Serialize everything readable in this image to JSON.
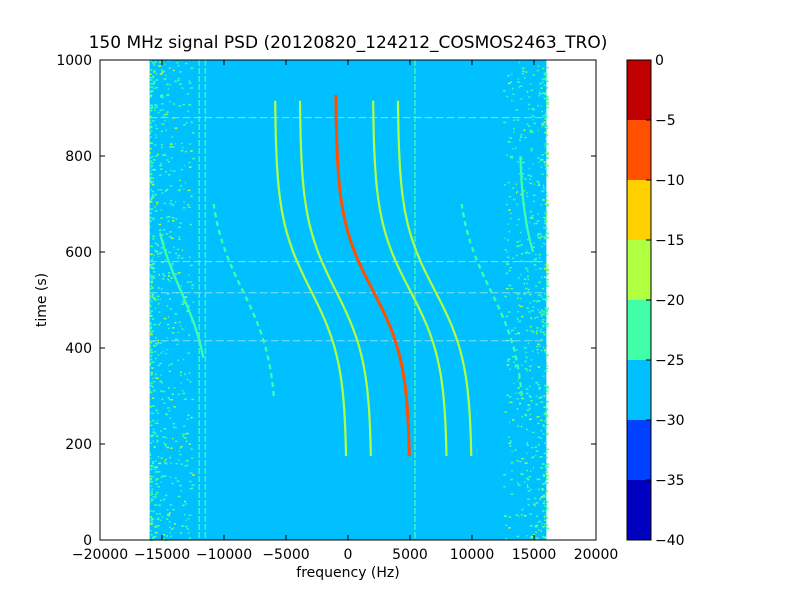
{
  "chart_data": {
    "type": "heatmap",
    "title": "150 MHz signal PSD (20120820_124212_COSMOS2463_TRO)",
    "xlabel": "frequency (Hz)",
    "ylabel": "time (s)",
    "xlim": [
      -20000,
      20000
    ],
    "ylim": [
      0,
      1000
    ],
    "xticks": [
      -20000,
      -15000,
      -10000,
      -5000,
      0,
      5000,
      10000,
      15000,
      20000
    ],
    "xtick_labels": [
      "−20000",
      "−15000",
      "−10000",
      "−5000",
      "0",
      "5000",
      "10000",
      "15000",
      "20000"
    ],
    "yticks": [
      0,
      200,
      400,
      600,
      800,
      1000
    ],
    "ytick_labels": [
      "0",
      "200",
      "400",
      "600",
      "800",
      "1000"
    ],
    "data_extent_hz": [
      -16000,
      16000
    ],
    "background_level_db": -27,
    "colorbar": {
      "levels": [
        -40,
        -35,
        -30,
        -25,
        -20,
        -15,
        -10,
        -5,
        0
      ],
      "tick_labels": [
        "−40",
        "−35",
        "−30",
        "−25",
        "−20",
        "−15",
        "−10",
        "−5",
        "0"
      ],
      "colors": [
        "#0000c0",
        "#0040ff",
        "#00c0ff",
        "#40ffa8",
        "#b0ff40",
        "#ffd000",
        "#ff5000",
        "#c00000"
      ]
    },
    "tracks": [
      {
        "center_hz": 2000,
        "half_swing_hz": 3000,
        "t_mid": 520,
        "t_start": 175,
        "t_end": 930,
        "level_db": -10
      },
      {
        "center_hz": -1000,
        "half_swing_hz": 2900,
        "t_mid": 520,
        "t_start": 175,
        "t_end": 915,
        "level_db": -20
      },
      {
        "center_hz": -3000,
        "half_swing_hz": 2900,
        "t_mid": 520,
        "t_start": 175,
        "t_end": 915,
        "level_db": -20
      },
      {
        "center_hz": 5000,
        "half_swing_hz": 3000,
        "t_mid": 520,
        "t_start": 175,
        "t_end": 915,
        "level_db": -20
      },
      {
        "center_hz": 7000,
        "half_swing_hz": 3000,
        "t_mid": 520,
        "t_start": 175,
        "t_end": 915,
        "level_db": -20
      },
      {
        "center_hz": -8500,
        "half_swing_hz": 2800,
        "t_mid": 520,
        "t_start": 300,
        "t_end": 700,
        "level_db": -24
      },
      {
        "center_hz": 11500,
        "half_swing_hz": 2800,
        "t_mid": 520,
        "t_start": 300,
        "t_end": 700,
        "level_db": -24
      },
      {
        "center_hz": -13500,
        "half_swing_hz": 2500,
        "t_mid": 520,
        "t_start": 380,
        "t_end": 640,
        "level_db": -22
      },
      {
        "center_hz": 16000,
        "half_swing_hz": 2200,
        "t_mid": 520,
        "t_start": 600,
        "t_end": 800,
        "level_db": -22
      }
    ],
    "vertical_lines_hz": [
      -12000,
      -11500,
      5400
    ],
    "horizontal_lines_s": [
      880,
      580,
      515,
      415
    ]
  }
}
